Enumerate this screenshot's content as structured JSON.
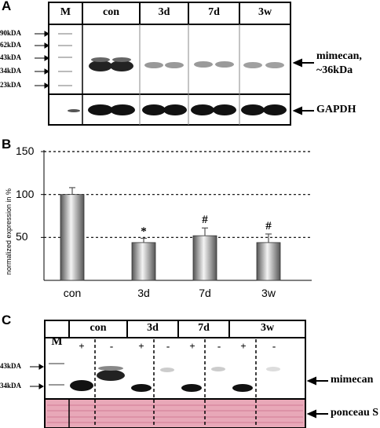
{
  "panel_a": {
    "letter": "A",
    "marker_label": "M",
    "lanes": [
      "con",
      "3d",
      "7d",
      "3w"
    ],
    "mw_markers": [
      "90kDA",
      "62kDA",
      "43kDA",
      "34kDA",
      "23kDA"
    ],
    "band_label_line1": "mimecan,",
    "band_label_line2": "~36kDa",
    "loading_label": "GAPDH"
  },
  "panel_b": {
    "letter": "B"
  },
  "chart_data": {
    "type": "bar",
    "categories": [
      "con",
      "3d",
      "7d",
      "3w"
    ],
    "values": [
      100,
      44,
      52,
      44
    ],
    "errors": [
      8,
      5,
      9,
      10
    ],
    "significance": [
      "",
      "*",
      "#",
      "#"
    ],
    "xlabel": "",
    "ylabel": "normalized expression in %",
    "yticks": [
      50,
      100,
      150
    ],
    "ylim": [
      0,
      150
    ],
    "grid": "dashed"
  },
  "panel_c": {
    "letter": "C",
    "marker_label": "M",
    "lanes": [
      "con",
      "3d",
      "7d",
      "3w"
    ],
    "sublanes": [
      "+",
      "-"
    ],
    "mw_markers": [
      "43kDA",
      "34kDA"
    ],
    "band_label": "mimecan",
    "loading_label": "ponceau S"
  }
}
